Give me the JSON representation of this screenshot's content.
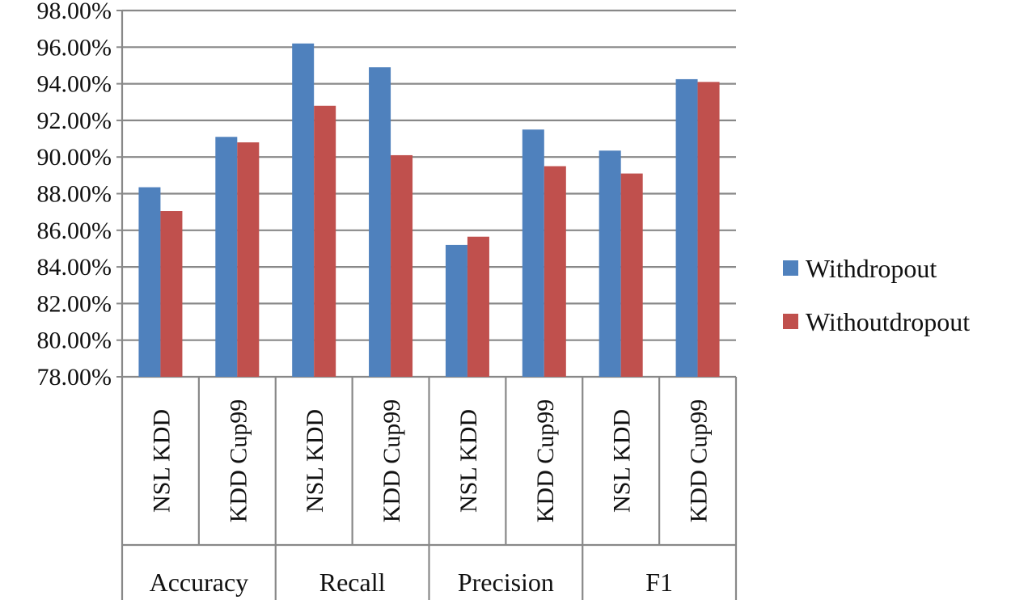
{
  "chart_data": {
    "type": "bar",
    "title": "",
    "xlabel": "",
    "ylabel": "",
    "ylim": [
      78,
      98
    ],
    "ytick_step": 2,
    "ytick_labels": [
      "78.00%",
      "80.00%",
      "82.00%",
      "84.00%",
      "86.00%",
      "88.00%",
      "90.00%",
      "92.00%",
      "94.00%",
      "96.00%",
      "98.00%"
    ],
    "grid": true,
    "legend_position": "right",
    "groups": [
      {
        "label": "Accuracy",
        "categories": [
          "NSL KDD",
          "KDD Cup99"
        ]
      },
      {
        "label": "Recall",
        "categories": [
          "NSL KDD",
          "KDD Cup99"
        ]
      },
      {
        "label": "Precision",
        "categories": [
          "NSL KDD",
          "KDD Cup99"
        ]
      },
      {
        "label": "F1",
        "categories": [
          "NSL KDD",
          "KDD Cup99"
        ]
      }
    ],
    "series": [
      {
        "name": "Withdropout",
        "color": "#4f81bd",
        "values": [
          88.35,
          91.1,
          96.2,
          94.9,
          85.2,
          91.5,
          90.35,
          94.25
        ]
      },
      {
        "name": "Withoutdropout",
        "color": "#c0504d",
        "values": [
          87.05,
          90.8,
          92.8,
          90.1,
          85.65,
          89.5,
          89.1,
          94.1
        ]
      }
    ]
  }
}
